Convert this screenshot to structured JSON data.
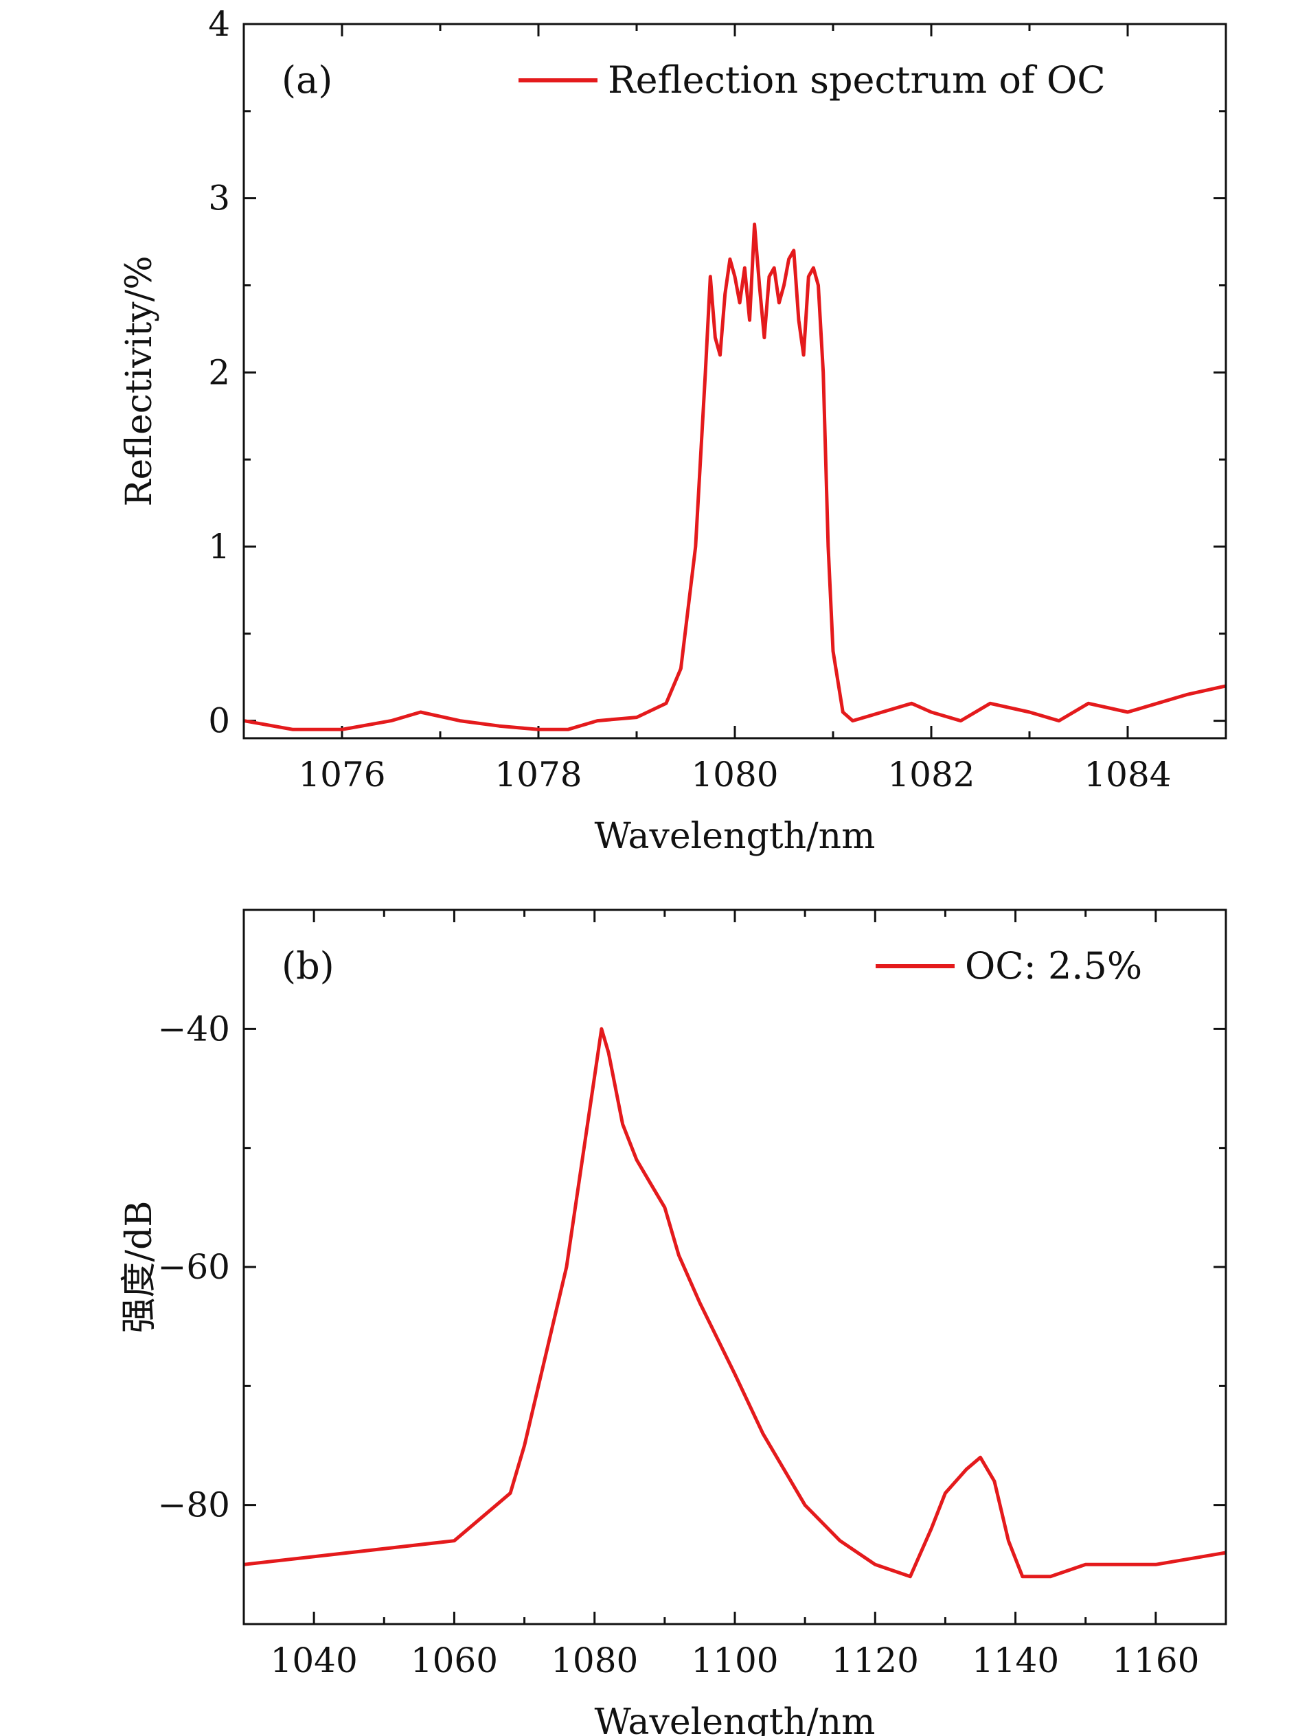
{
  "colors": {
    "series": "#e41a1c",
    "axis": "#111111"
  },
  "chart_data": [
    {
      "type": "line",
      "panel_label": "(a)",
      "xlabel": "Wavelength/nm",
      "ylabel": "Reflectivity/%",
      "xlim": [
        1075,
        1085
      ],
      "ylim": [
        -0.1,
        4
      ],
      "xticks": [
        1076,
        1078,
        1080,
        1082,
        1084
      ],
      "yticks": [
        0,
        1,
        2,
        3,
        4
      ],
      "legend_position": "top-right",
      "series": [
        {
          "name": "Reflection spectrum of OC",
          "x": [
            1075.0,
            1075.5,
            1076.0,
            1076.5,
            1076.8,
            1077.2,
            1077.6,
            1078.0,
            1078.3,
            1078.6,
            1079.0,
            1079.3,
            1079.45,
            1079.6,
            1079.7,
            1079.75,
            1079.8,
            1079.85,
            1079.9,
            1079.95,
            1080.0,
            1080.05,
            1080.1,
            1080.15,
            1080.2,
            1080.25,
            1080.3,
            1080.35,
            1080.4,
            1080.45,
            1080.5,
            1080.55,
            1080.6,
            1080.65,
            1080.7,
            1080.75,
            1080.8,
            1080.85,
            1080.9,
            1080.95,
            1081.0,
            1081.1,
            1081.2,
            1081.5,
            1081.8,
            1082.0,
            1082.3,
            1082.6,
            1083.0,
            1083.3,
            1083.6,
            1084.0,
            1084.3,
            1084.6,
            1085.0
          ],
          "y": [
            0.0,
            -0.05,
            -0.05,
            0.0,
            0.05,
            0.0,
            -0.03,
            -0.05,
            -0.05,
            0.0,
            0.02,
            0.1,
            0.3,
            1.0,
            2.0,
            2.55,
            2.2,
            2.1,
            2.45,
            2.65,
            2.55,
            2.4,
            2.6,
            2.3,
            2.85,
            2.5,
            2.2,
            2.55,
            2.6,
            2.4,
            2.5,
            2.65,
            2.7,
            2.3,
            2.1,
            2.55,
            2.6,
            2.5,
            2.0,
            1.0,
            0.4,
            0.05,
            0.0,
            0.05,
            0.1,
            0.05,
            0.0,
            0.1,
            0.05,
            0.0,
            0.1,
            0.05,
            0.1,
            0.15,
            0.2
          ]
        }
      ]
    },
    {
      "type": "line",
      "panel_label": "(b)",
      "xlabel": "Wavelength/nm",
      "ylabel": "强度/dB",
      "xlim": [
        1030,
        1170
      ],
      "ylim": [
        -90,
        -30
      ],
      "xticks": [
        1040,
        1060,
        1080,
        1100,
        1120,
        1140,
        1160
      ],
      "yticks": [
        -40,
        -60,
        -80
      ],
      "ytick_labels": [
        "−40",
        "−60",
        "−80"
      ],
      "legend_position": "top-right",
      "series": [
        {
          "name": "OC: 2.5%",
          "x": [
            1030,
            1045,
            1060,
            1066,
            1068,
            1070,
            1072,
            1074,
            1076,
            1078,
            1080,
            1081,
            1082,
            1084,
            1086,
            1088,
            1090,
            1092,
            1095,
            1100,
            1104,
            1108,
            1110,
            1115,
            1120,
            1125,
            1128,
            1130,
            1133,
            1135,
            1137,
            1139,
            1141,
            1145,
            1150,
            1160,
            1170
          ],
          "y": [
            -85,
            -84,
            -83,
            -80,
            -79,
            -75,
            -70,
            -65,
            -60,
            -52,
            -44,
            -40,
            -42,
            -48,
            -51,
            -53,
            -55,
            -59,
            -63,
            -69,
            -74,
            -78,
            -80,
            -83,
            -85,
            -86,
            -82,
            -79,
            -77,
            -76,
            -78,
            -83,
            -86,
            -86,
            -85,
            -85,
            -84
          ]
        }
      ]
    }
  ]
}
